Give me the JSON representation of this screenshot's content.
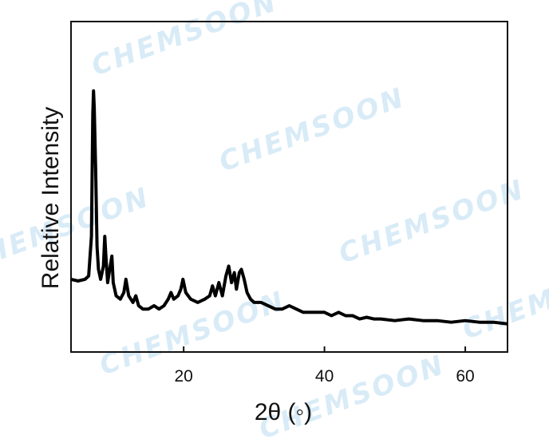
{
  "chart_data": {
    "type": "line",
    "xlabel": "2θ (◦)",
    "ylabel": "Relative Intensity",
    "xlim": [
      4,
      66
    ],
    "ylim": [
      0,
      100
    ],
    "xticks": [
      20,
      40,
      60
    ],
    "yticks": [],
    "grid": false,
    "legend": "none",
    "series": [
      {
        "x": [
          4,
          5,
          6,
          6.5,
          6.9,
          7.1,
          7.2,
          7.3,
          7.5,
          7.7,
          7.9,
          8.2,
          8.6,
          8.8,
          8.95,
          9.2,
          9.5,
          9.8,
          10.0,
          10.4,
          11.0,
          11.5,
          11.8,
          12.2,
          12.8,
          13.2,
          13.6,
          14.2,
          15.0,
          15.8,
          16.5,
          17.2,
          17.8,
          18.2,
          18.6,
          19.2,
          19.6,
          19.9,
          20.3,
          21.0,
          22.0,
          23.0,
          23.7,
          24.1,
          24.5,
          25.0,
          25.5,
          26.0,
          26.4,
          26.8,
          27.2,
          27.5,
          27.9,
          28.2,
          28.6,
          29.0,
          29.5,
          30.0,
          31.0,
          32.0,
          33.0,
          34.0,
          35.0,
          36.0,
          37.0,
          38.0,
          39.0,
          40.0,
          41.0,
          42.0,
          43.0,
          44.0,
          45.0,
          46.0,
          47.0,
          48.0,
          50.0,
          52.0,
          54.0,
          56.0,
          58.0,
          60.0,
          62.0,
          64.0,
          66.0
        ],
        "y": [
          22,
          21.5,
          22,
          23,
          35,
          72,
          79,
          74,
          55,
          32,
          25,
          22,
          26,
          35,
          29,
          21,
          25,
          29,
          21,
          17,
          16,
          18,
          22,
          17,
          15,
          17,
          14,
          13,
          13,
          14,
          13,
          14,
          16,
          18,
          16,
          17,
          19,
          22,
          18,
          16,
          15,
          16,
          17,
          20,
          17,
          21,
          17,
          23,
          26,
          21,
          24,
          19,
          24,
          25,
          22,
          18,
          16,
          15,
          15,
          14,
          13,
          13,
          14,
          13,
          12,
          12,
          12,
          12,
          11,
          12,
          11,
          11,
          10,
          10.5,
          10,
          10,
          9.5,
          10,
          9.5,
          9.5,
          9,
          9.5,
          9,
          9,
          8.5
        ]
      }
    ]
  },
  "watermark": {
    "text": "CHEMSOON",
    "color": "#a9d3ee"
  }
}
